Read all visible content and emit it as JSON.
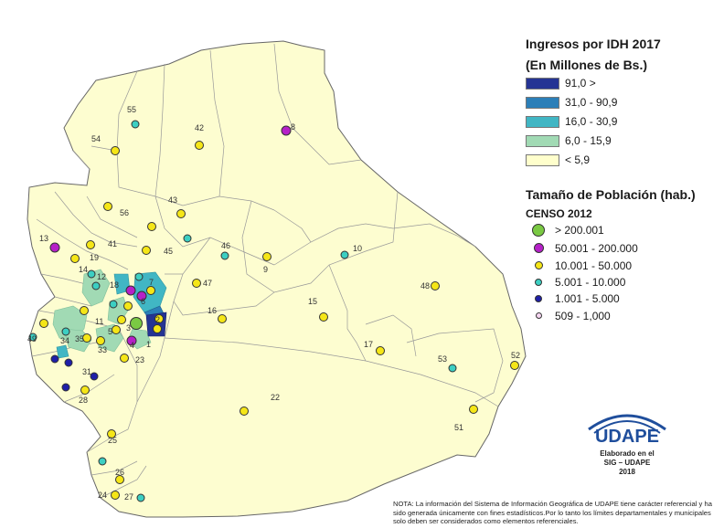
{
  "legend_income": {
    "title": "Ingresos por IDH 2017",
    "subtitle": "(En Millones de Bs.)",
    "classes": [
      {
        "label": "91,0 >",
        "color": "#253494"
      },
      {
        "label": "31,0 - 90,9",
        "color": "#2c7fb8"
      },
      {
        "label": "16,0 - 30,9",
        "color": "#41b6c4"
      },
      {
        "label": "6,0 - 15,9",
        "color": "#a1dab4"
      },
      {
        "label": "< 5,9",
        "color": "#ffffcc"
      }
    ]
  },
  "legend_population": {
    "title": "Tamaño de Población (hab.)",
    "subtitle": "CENSO 2012",
    "classes": [
      {
        "label": "> 200.001",
        "color": "#7ac943"
      },
      {
        "label": "50.001 - 200.000",
        "color": "#b620c8"
      },
      {
        "label": "10.001 - 50.000",
        "color": "#f5e617"
      },
      {
        "label": "5.001 - 10.000",
        "color": "#3ccfc2"
      },
      {
        "label": "1.001 - 5.000",
        "color": "#1f1fa8"
      },
      {
        "label": "509  - 1,000",
        "color": "#f7d6f2"
      }
    ]
  },
  "logo": {
    "name": "UDAPE",
    "line1": "Elaborado en el",
    "line2": "SIG – UDAPE",
    "line3": "2018"
  },
  "note": "NOTA: La información del Sistema de Información Geográfica de UDAPE tiene carácter referencial y ha sido generada únicamente con fines estadísticos.Por lo tanto los límites departamentales y municipales solo deben ser considerados como elementos referenciales.",
  "municipalities": [
    {
      "id": "1",
      "pop_class": "10.001 - 50.000"
    },
    {
      "id": "2",
      "pop_class": "10.001 - 50.000"
    },
    {
      "id": "3",
      "pop_class": "> 200.001"
    },
    {
      "id": "4",
      "pop_class": "50.001 - 200.000"
    },
    {
      "id": "5",
      "pop_class": "10.001 - 50.000"
    },
    {
      "id": "6",
      "pop_class": "10.001 - 50.000"
    },
    {
      "id": "7",
      "pop_class": "10.001 - 50.000"
    },
    {
      "id": "8",
      "pop_class": "50.001 - 200.000"
    },
    {
      "id": "9",
      "pop_class": "10.001 - 50.000"
    },
    {
      "id": "10",
      "pop_class": "5.001 - 10.000"
    },
    {
      "id": "11",
      "pop_class": "10.001 - 50.000"
    },
    {
      "id": "12",
      "pop_class": "5.001 - 10.000"
    },
    {
      "id": "13",
      "pop_class": "50.001 - 200.000"
    },
    {
      "id": "14",
      "pop_class": "10.001 - 50.000"
    },
    {
      "id": "15",
      "pop_class": "10.001 - 50.000"
    },
    {
      "id": "16",
      "pop_class": "10.001 - 50.000"
    },
    {
      "id": "17",
      "pop_class": "10.001 - 50.000"
    },
    {
      "id": "18",
      "pop_class": "50.001 - 200.000"
    },
    {
      "id": "19",
      "pop_class": "10.001 - 50.000"
    },
    {
      "id": "22",
      "pop_class": "10.001 - 50.000"
    },
    {
      "id": "23",
      "pop_class": "10.001 - 50.000"
    },
    {
      "id": "24",
      "pop_class": "10.001 - 50.000"
    },
    {
      "id": "25",
      "pop_class": "10.001 - 50.000"
    },
    {
      "id": "26",
      "pop_class": "10.001 - 50.000"
    },
    {
      "id": "27",
      "pop_class": "5.001 - 10.000"
    },
    {
      "id": "28",
      "pop_class": "10.001 - 50.000"
    },
    {
      "id": "31",
      "pop_class": "1.001 - 5.000"
    },
    {
      "id": "33",
      "pop_class": "10.001 - 50.000"
    },
    {
      "id": "34",
      "pop_class": "5.001 - 10.000"
    },
    {
      "id": "35",
      "pop_class": "10.001 - 50.000"
    },
    {
      "id": "41",
      "pop_class": "10.001 - 50.000"
    },
    {
      "id": "42",
      "pop_class": "10.001 - 50.000"
    },
    {
      "id": "43",
      "pop_class": "10.001 - 50.000"
    },
    {
      "id": "45",
      "pop_class": "10.001 - 50.000"
    },
    {
      "id": "46",
      "pop_class": "5.001 - 10.000"
    },
    {
      "id": "47",
      "pop_class": "10.001 - 50.000"
    },
    {
      "id": "48",
      "pop_class": "10.001 - 50.000"
    },
    {
      "id": "49",
      "pop_class": "10.001 - 50.000"
    },
    {
      "id": "51",
      "pop_class": "10.001 - 50.000"
    },
    {
      "id": "52",
      "pop_class": "10.001 - 50.000"
    },
    {
      "id": "53",
      "pop_class": "5.001 - 10.000"
    },
    {
      "id": "54",
      "pop_class": "10.001 - 50.000"
    },
    {
      "id": "55",
      "pop_class": "5.001 - 10.000"
    },
    {
      "id": "56",
      "pop_class": "10.001 - 50.000"
    }
  ]
}
